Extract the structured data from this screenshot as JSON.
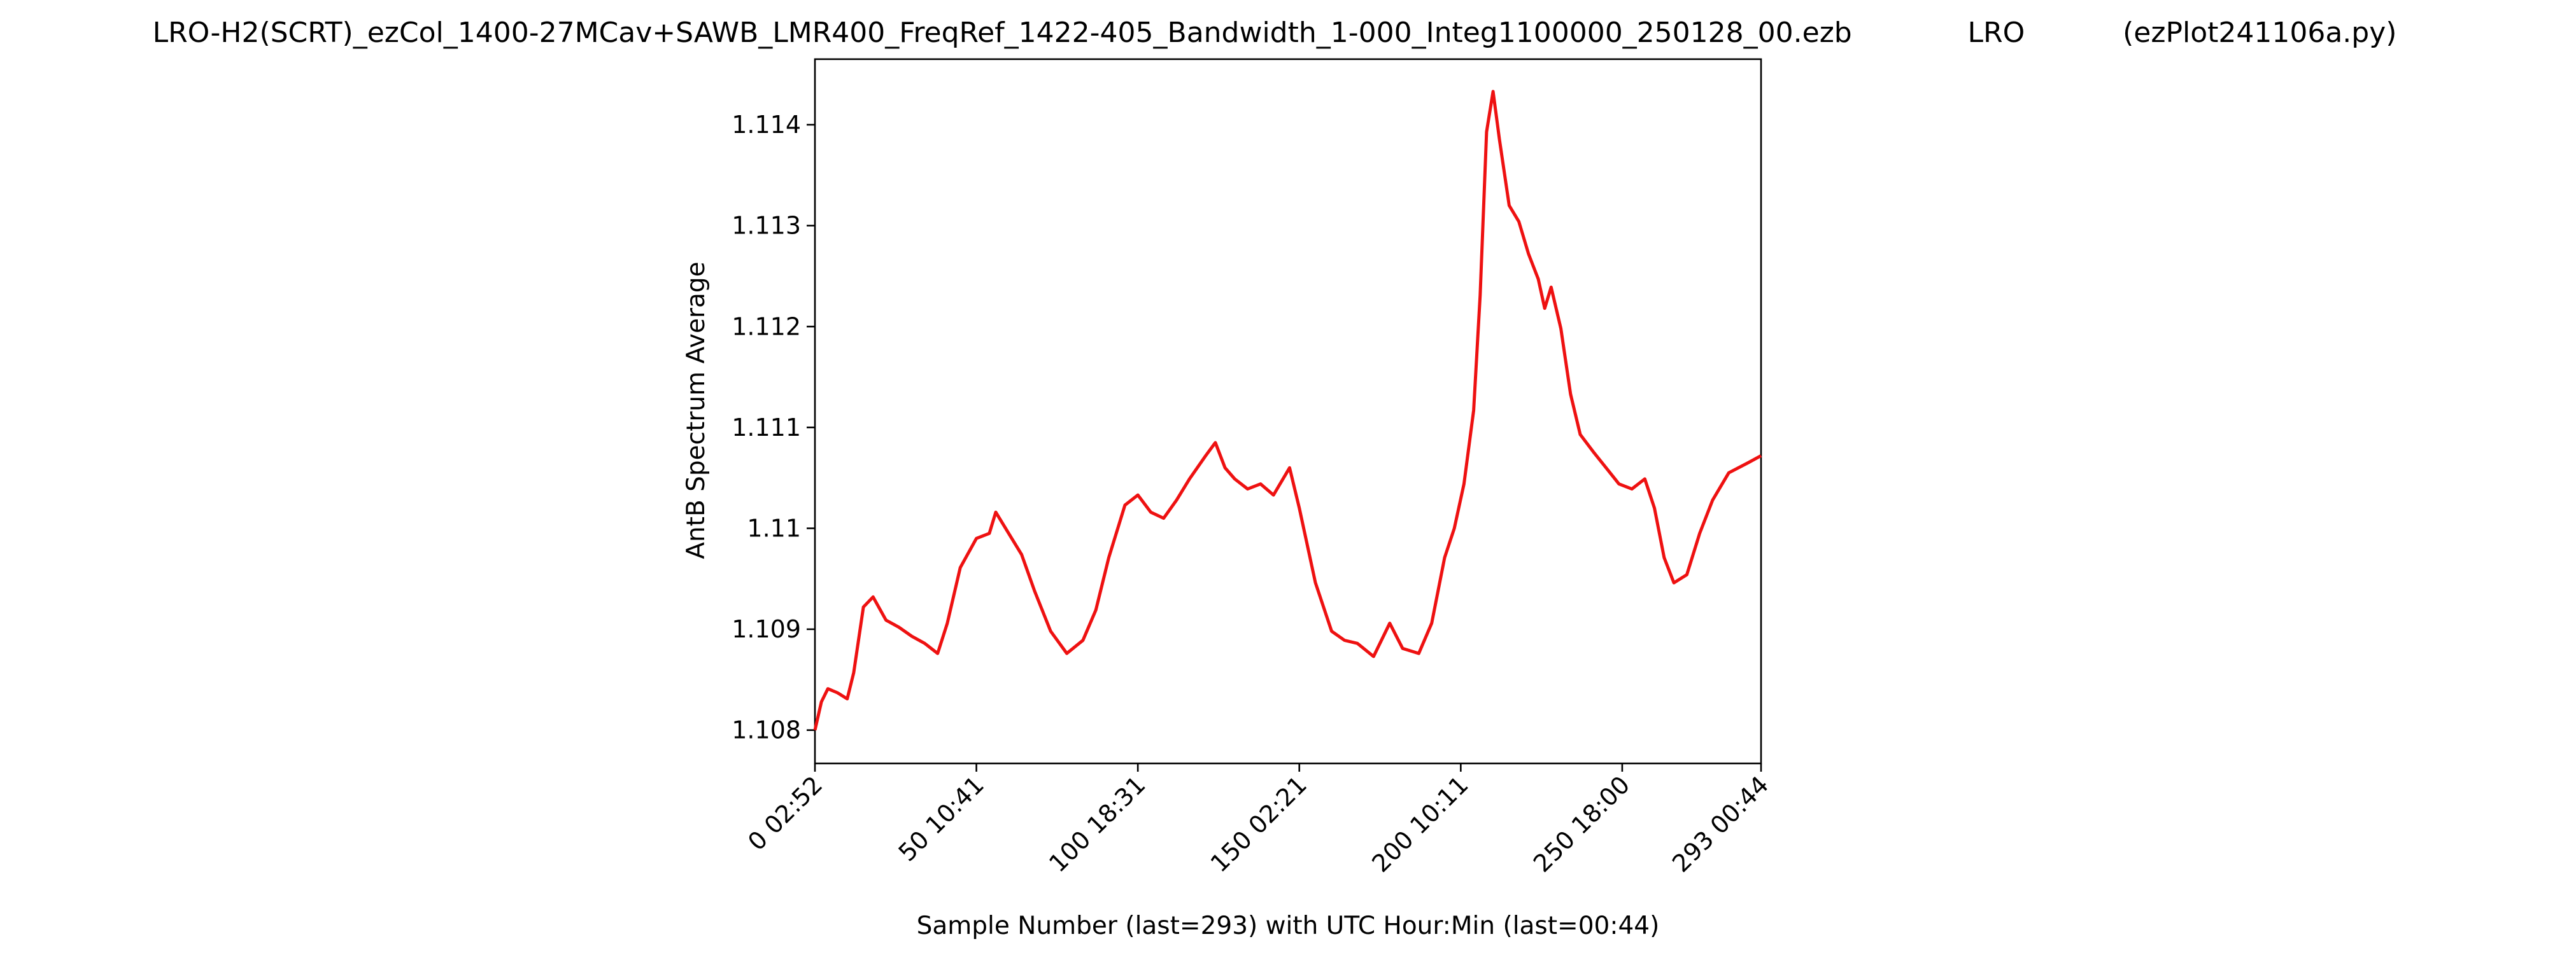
{
  "chart_data": {
    "type": "line",
    "title": "LRO-H2(SCRT)_ezCol_1400-27MCav+SAWB_LMR400_FreqRef_1422-405_Bandwidth_1-000_Integ1100000_250128_00.ezb             LRO           (ezPlot241106a.py)",
    "xlabel": "Sample Number (last=293) with UTC Hour:Min (last=00:44)",
    "ylabel": "AntB Spectrum Average",
    "color": "#ee1111",
    "x": [
      0,
      2,
      4,
      7,
      10,
      12,
      15,
      18,
      22,
      26,
      30,
      34,
      38,
      41,
      45,
      50,
      54,
      56,
      60,
      64,
      68,
      73,
      78,
      83,
      87,
      91,
      96,
      100,
      104,
      108,
      112,
      116,
      121,
      124,
      127,
      130,
      134,
      138,
      142,
      147,
      150,
      155,
      160,
      164,
      168,
      173,
      178,
      182,
      187,
      191,
      195,
      198,
      201,
      204,
      206,
      208,
      210,
      212,
      215,
      218,
      221,
      224,
      226,
      228,
      231,
      234,
      237,
      241,
      245,
      249,
      253,
      257,
      260,
      263,
      266,
      270,
      274,
      278,
      283,
      289,
      293
    ],
    "values": [
      1.108,
      1.10828,
      1.10841,
      1.10837,
      1.10831,
      1.10857,
      1.10922,
      1.10932,
      1.10909,
      1.10902,
      1.10893,
      1.10886,
      1.10876,
      1.10906,
      1.10961,
      1.1099,
      1.10995,
      1.11016,
      1.10995,
      1.10974,
      1.10938,
      1.10898,
      1.10876,
      1.10889,
      1.10919,
      1.10971,
      1.11023,
      1.11033,
      1.11016,
      1.1101,
      1.11028,
      1.11049,
      1.11072,
      1.11085,
      1.1106,
      1.11049,
      1.11039,
      1.11044,
      1.11033,
      1.1106,
      1.1102,
      1.10946,
      1.10898,
      1.10889,
      1.10886,
      1.10873,
      1.10906,
      1.10881,
      1.10876,
      1.10906,
      1.10971,
      1.11,
      1.11044,
      1.11117,
      1.11231,
      1.11393,
      1.11433,
      1.11385,
      1.1132,
      1.11304,
      1.11272,
      1.11247,
      1.11218,
      1.11239,
      1.11198,
      1.11133,
      1.11093,
      1.11076,
      1.1106,
      1.11044,
      1.11039,
      1.11049,
      1.1102,
      1.10971,
      1.10946,
      1.10954,
      1.10995,
      1.11028,
      1.11055,
      1.11065,
      1.11072
    ],
    "xlim": [
      0,
      293
    ],
    "xticks": [
      {
        "value": 0,
        "label": "0  02:52"
      },
      {
        "value": 50,
        "label": "50  10:41"
      },
      {
        "value": 100,
        "label": "100  18:31"
      },
      {
        "value": 150,
        "label": "150  02:21"
      },
      {
        "value": 200,
        "label": "200  10:11"
      },
      {
        "value": 250,
        "label": "250  18:00"
      },
      {
        "value": 293,
        "label": "293  00:44"
      }
    ],
    "ylim": [
      1.10767,
      1.11465
    ],
    "yticks": [
      1.108,
      1.109,
      1.11,
      1.111,
      1.112,
      1.113,
      1.114
    ],
    "grid": false
  }
}
